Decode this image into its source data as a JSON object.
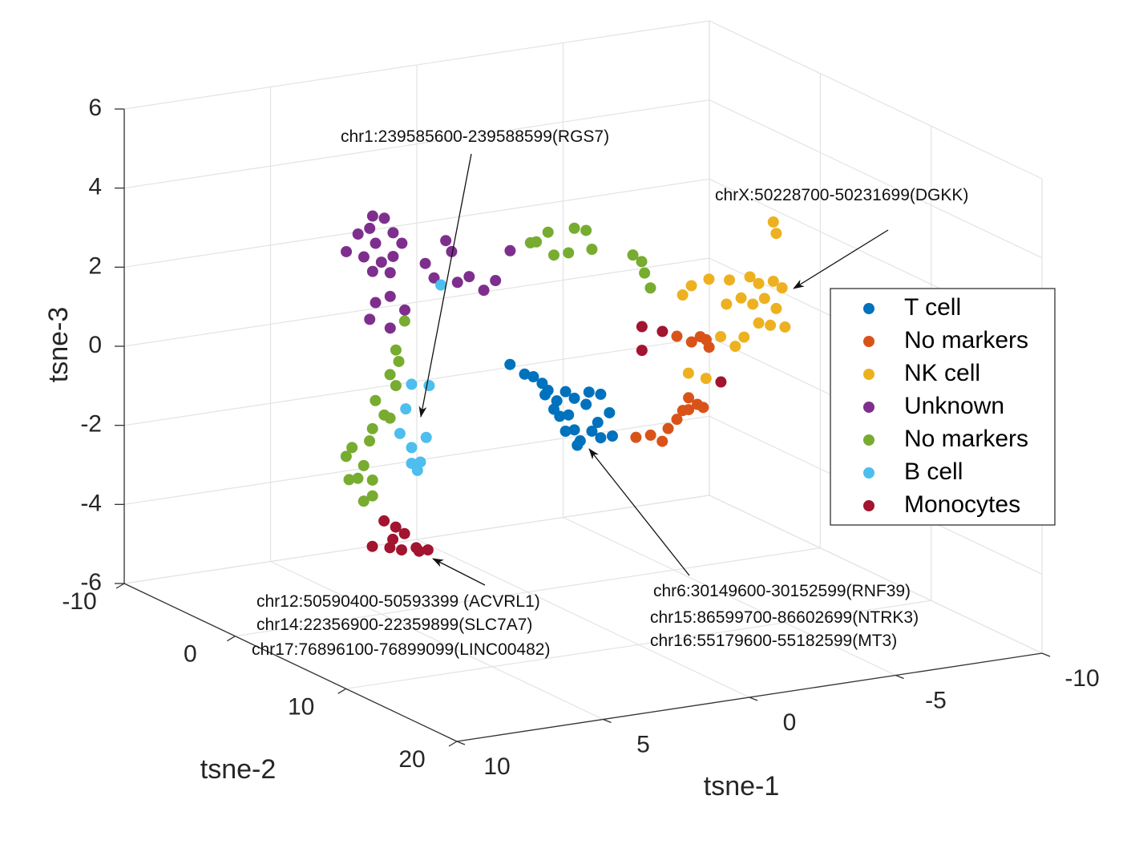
{
  "chart_data": {
    "type": "scatter3d",
    "xlabel": "tsne-1",
    "ylabel": "tsne-2",
    "zlabel": "tsne-3",
    "xlim": [
      -10,
      10
    ],
    "ylim": [
      -10,
      20
    ],
    "zlim": [
      -6,
      6
    ],
    "xticks": [
      -10,
      -5,
      0,
      5,
      10
    ],
    "yticks": [
      -10,
      0,
      10,
      20
    ],
    "zticks": [
      -6,
      -4,
      -2,
      0,
      2,
      4,
      6
    ],
    "grid": true,
    "legend": "east",
    "series": [
      {
        "name": "T cell",
        "color": "#0072BD",
        "x": [
          2.5,
          2.0,
          1.7,
          1.4,
          1.2,
          1.3,
          0.9,
          1.0,
          0.8,
          0.6,
          0.3,
          0.1,
          0.2,
          -0.3,
          -0.5,
          0.5,
          -0.1,
          -0.6,
          -0.9,
          -1.0,
          -0.6,
          -0.2,
          0.6,
          0.3
        ],
        "y": [
          5,
          5,
          5,
          5,
          5,
          5,
          5,
          5,
          5,
          5,
          5,
          5,
          5,
          5,
          5,
          5,
          5,
          5,
          5,
          5,
          5,
          5,
          5,
          5
        ],
        "z": [
          0.7,
          0.4,
          0.3,
          0.1,
          -0.1,
          -0.2,
          -0.4,
          -0.6,
          -0.8,
          -1.2,
          -1.2,
          -1.5,
          -1.6,
          -1.3,
          -1.1,
          -0.8,
          -0.6,
          -0.4,
          -0.9,
          -1.5,
          -1.5,
          -0.3,
          -0.2,
          -0.4
        ]
      },
      {
        "name": "No markers",
        "color": "#D95319",
        "x": [
          -3.7,
          -4.2,
          -4.6,
          -4.8,
          -5.1,
          -5.3,
          -5.5,
          -5.5,
          -5.8,
          -6.0,
          -5.1,
          -5.6,
          -6.1,
          -6.2,
          -5.9
        ],
        "y": [
          0,
          0,
          0,
          0,
          0,
          0,
          0,
          0,
          0,
          0,
          0,
          0,
          0,
          0,
          0
        ],
        "z": [
          -2.5,
          -2.5,
          -2.7,
          -2.4,
          -2.2,
          -2.0,
          -2.0,
          -1.7,
          -1.9,
          -2.0,
          -0.1,
          -0.3,
          -0.3,
          -0.5,
          -0.2
        ]
      },
      {
        "name": "NK cell",
        "color": "#EDB120",
        "x": [
          -6.5,
          -6.6,
          -3.4,
          -3.7,
          -4.3,
          -5.0,
          -5.7,
          -6.0,
          -6.5,
          -4.9,
          -5.4,
          -5.8,
          -6.2,
          -6.8,
          -6.6,
          -6.9,
          -6.4,
          -6.0,
          -5.5,
          -5.2,
          -4.7,
          -3.6,
          -4.2
        ],
        "y": [
          5,
          5,
          5,
          5,
          5,
          5,
          5,
          5,
          5,
          5,
          5,
          5,
          5,
          5,
          5,
          5,
          5,
          5,
          5,
          5,
          5,
          5,
          5
        ],
        "z": [
          3.3,
          3.0,
          1.8,
          2.0,
          2.1,
          2.0,
          2.0,
          1.8,
          1.8,
          1.4,
          1.5,
          1.3,
          1.4,
          1.6,
          1.1,
          0.6,
          0.7,
          0.8,
          0.5,
          0.3,
          0.6,
          -0.2,
          -0.4
        ]
      },
      {
        "name": "Unknown",
        "color": "#7E2F8E",
        "x": [
          6.2,
          5.8,
          5.4,
          5.3,
          4.9,
          4.6,
          5.2,
          5.6,
          5.0,
          4.6,
          4.3,
          4.7,
          5.3,
          3.5,
          2.8,
          2.6,
          3.2,
          2.4,
          2.0,
          1.5,
          1.1,
          0.6,
          4.7,
          5.2,
          4.2,
          5.4,
          4.7
        ],
        "y": [
          0,
          0,
          0,
          0,
          0,
          0,
          0,
          0,
          0,
          0,
          0,
          0,
          0,
          0,
          0,
          0,
          0,
          0,
          0,
          0,
          0,
          0,
          0,
          0,
          0,
          0,
          0
        ],
        "z": [
          3.3,
          3.7,
          3.8,
          4.1,
          4.0,
          3.6,
          3.4,
          3.1,
          2.9,
          3.0,
          3.3,
          2.6,
          2.7,
          2.7,
          3.2,
          2.9,
          2.3,
          2.1,
          2.2,
          1.8,
          2.0,
          2.7,
          2.0,
          1.9,
          1.6,
          1.5,
          1.2
        ]
      },
      {
        "name": "No markers",
        "color": "#77AC30",
        "x": [
          1.8,
          1.6,
          1.2,
          1.0,
          0.5,
          0.3,
          -0.1,
          -0.3,
          -1.7,
          -2.0,
          -2.1,
          -2.3,
          6.1,
          6.4,
          6.3,
          6.6,
          6.4,
          7.1,
          6.8,
          6.6,
          7.2,
          7.3,
          7.9,
          8.1,
          7.5,
          7.7,
          7.2,
          8.0,
          7.5,
          7.2
        ],
        "y": [
          5,
          5,
          5,
          5,
          5,
          5,
          5,
          5,
          5,
          5,
          5,
          5,
          5,
          5,
          5,
          5,
          5,
          5,
          5,
          5,
          5,
          5,
          5,
          5,
          5,
          5,
          5,
          5,
          5,
          5
        ],
        "z": [
          3.7,
          3.7,
          3.9,
          3.3,
          3.3,
          3.9,
          3.8,
          3.3,
          3.0,
          2.8,
          2.5,
          2.1,
          2.2,
          1.5,
          1.2,
          0.9,
          0.6,
          0.3,
          -0.1,
          -0.2,
          -0.4,
          -0.7,
          -0.8,
          -1.0,
          -1.3,
          -1.6,
          -1.7,
          -1.6,
          -2.2,
          -2.1
        ]
      },
      {
        "name": "B cell",
        "color": "#4DBEEE",
        "x": [
          6.0,
          7.0,
          6.4,
          7.2,
          7.4,
          6.5,
          7.0,
          6.7,
          7.0,
          6.8
        ],
        "y": [
          8,
          8,
          8,
          8,
          8,
          8,
          8,
          8,
          8,
          8
        ],
        "z": [
          3.5,
          1.1,
          1.0,
          0.5,
          -0.1,
          -0.3,
          -0.5,
          -0.9,
          -0.9,
          -1.1
        ]
      },
      {
        "name": "Monocytes",
        "color": "#A2142F",
        "x": [
          8.7,
          8.3,
          8.4,
          8.0,
          9.1,
          8.5,
          8.1,
          7.6,
          7.5,
          7.2,
          -5.8,
          -6.5,
          -5.8,
          -8.5
        ],
        "y": [
          10,
          10,
          10,
          10,
          10,
          10,
          10,
          10,
          10,
          10,
          -5,
          -5,
          -5,
          -5
        ],
        "z": [
          -1.9,
          -2.1,
          -2.4,
          -2.3,
          -2.5,
          -2.6,
          -2.7,
          -2.7,
          -2.8,
          -2.8,
          -0.6,
          -0.8,
          -1.2,
          -2.3
        ]
      }
    ],
    "annotations": [
      {
        "lines": [
          "chr1:239585600-239588599(RGS7)"
        ]
      },
      {
        "lines": [
          "chrX:50228700-50231699(DGKK)"
        ]
      },
      {
        "lines": [
          "chr12:50590400-50593399 (ACVRL1)",
          "chr14:22356900-22359899(SLC7A7)",
          "chr17:76896100-76899099(LINC00482)"
        ]
      },
      {
        "lines": [
          "chr6:30149600-30152599(RNF39)",
          "chr15:86599700-86602699(NTRK3)",
          "chr16:55179600-55182599(MT3)"
        ]
      }
    ]
  }
}
